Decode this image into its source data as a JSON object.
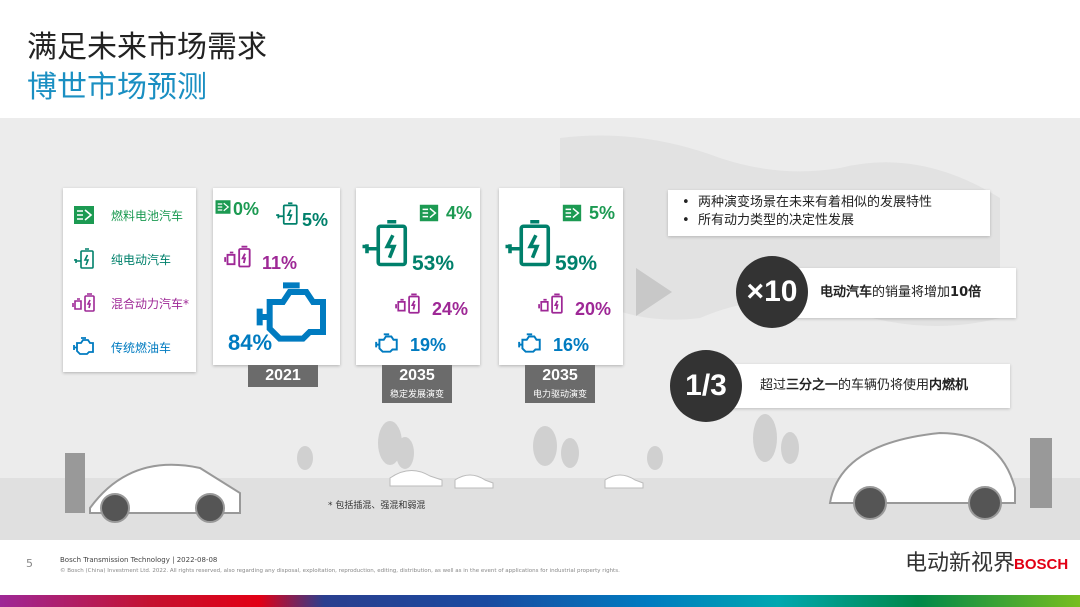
{
  "header": {
    "title": "满足未来市场需求",
    "subtitle": "博世市场预测"
  },
  "legend": {
    "items": [
      "燃料电池汽车",
      "纯电动汽车",
      "混合动力汽车*",
      "传统燃油车"
    ]
  },
  "scenarios": [
    {
      "year": "2021",
      "fuel_cell": "0%",
      "bev": "5%",
      "hybrid": "11%",
      "ice": "84%"
    },
    {
      "year": "2035",
      "label": "稳定发展演变",
      "fuel_cell": "4%",
      "bev": "53%",
      "hybrid": "24%",
      "ice": "19%"
    },
    {
      "year": "2035",
      "label": "电力驱动演变",
      "fuel_cell": "5%",
      "bev": "59%",
      "hybrid": "20%",
      "ice": "16%"
    }
  ],
  "bullets": [
    "两种演变场景在未来有着相似的发展特性",
    "所有动力类型的决定性发展"
  ],
  "callouts": [
    {
      "badge": "×10",
      "parts": [
        "电动汽车",
        "的销量将增加",
        "10倍"
      ]
    },
    {
      "badge": "1/3",
      "parts": [
        "超过",
        "三分之一",
        "的车辆仍将使用",
        "内燃机"
      ]
    }
  ],
  "footnote": "* 包括插混、强混和弱混",
  "footer": {
    "page": "5",
    "line1": "Bosch Transmission Technology  | 2022-08-08",
    "line2": "© Bosch (China) Investment Ltd. 2022. All rights reserved, also regarding any disposal, exploitation, reproduction, editing, distribution, as well as in the event of applications for industrial property rights.",
    "watermark": "电动新视界",
    "logo": "BOSCH"
  }
}
